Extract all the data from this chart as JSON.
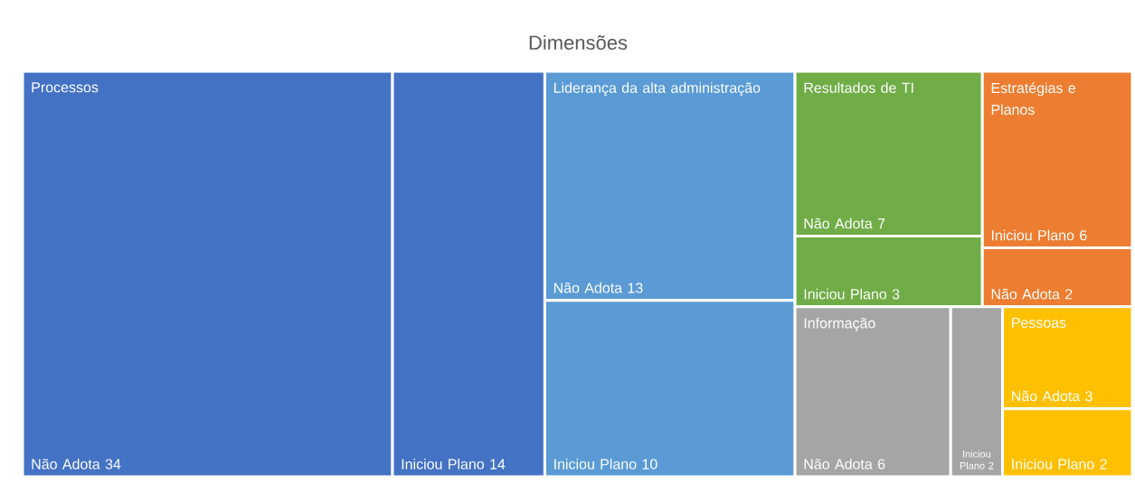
{
  "chart_data": {
    "type": "other",
    "title": "Dimensões",
    "data_labels": true,
    "categories": [
      "Não Adota",
      "Iniciou Plano",
      "Não Adota",
      "Iniciou Plano",
      "Não Adota",
      "Iniciou Plano",
      "Iniciou Plano",
      "Não Adota",
      "Não Adota",
      "Iniciou Plano",
      "Não Adota",
      "Iniciou Plano"
    ],
    "values": [
      34,
      14,
      13,
      10,
      7,
      3,
      6,
      2,
      6,
      2,
      3,
      2
    ],
    "colors": [
      "#4472c4",
      "#4472c4",
      "#5b9bd5",
      "#5b9bd5",
      "#70ad47",
      "#70ad47",
      "#ed7d31",
      "#ed7d31",
      "#a5a5a5",
      "#a5a5a5",
      "#ffc000",
      "#ffc000"
    ],
    "annotations": [
      "Processos",
      "Liderança da alta administração",
      "Resultados de TI",
      "Estratégias e Planos",
      "Informação",
      "Pessoas"
    ]
  }
}
